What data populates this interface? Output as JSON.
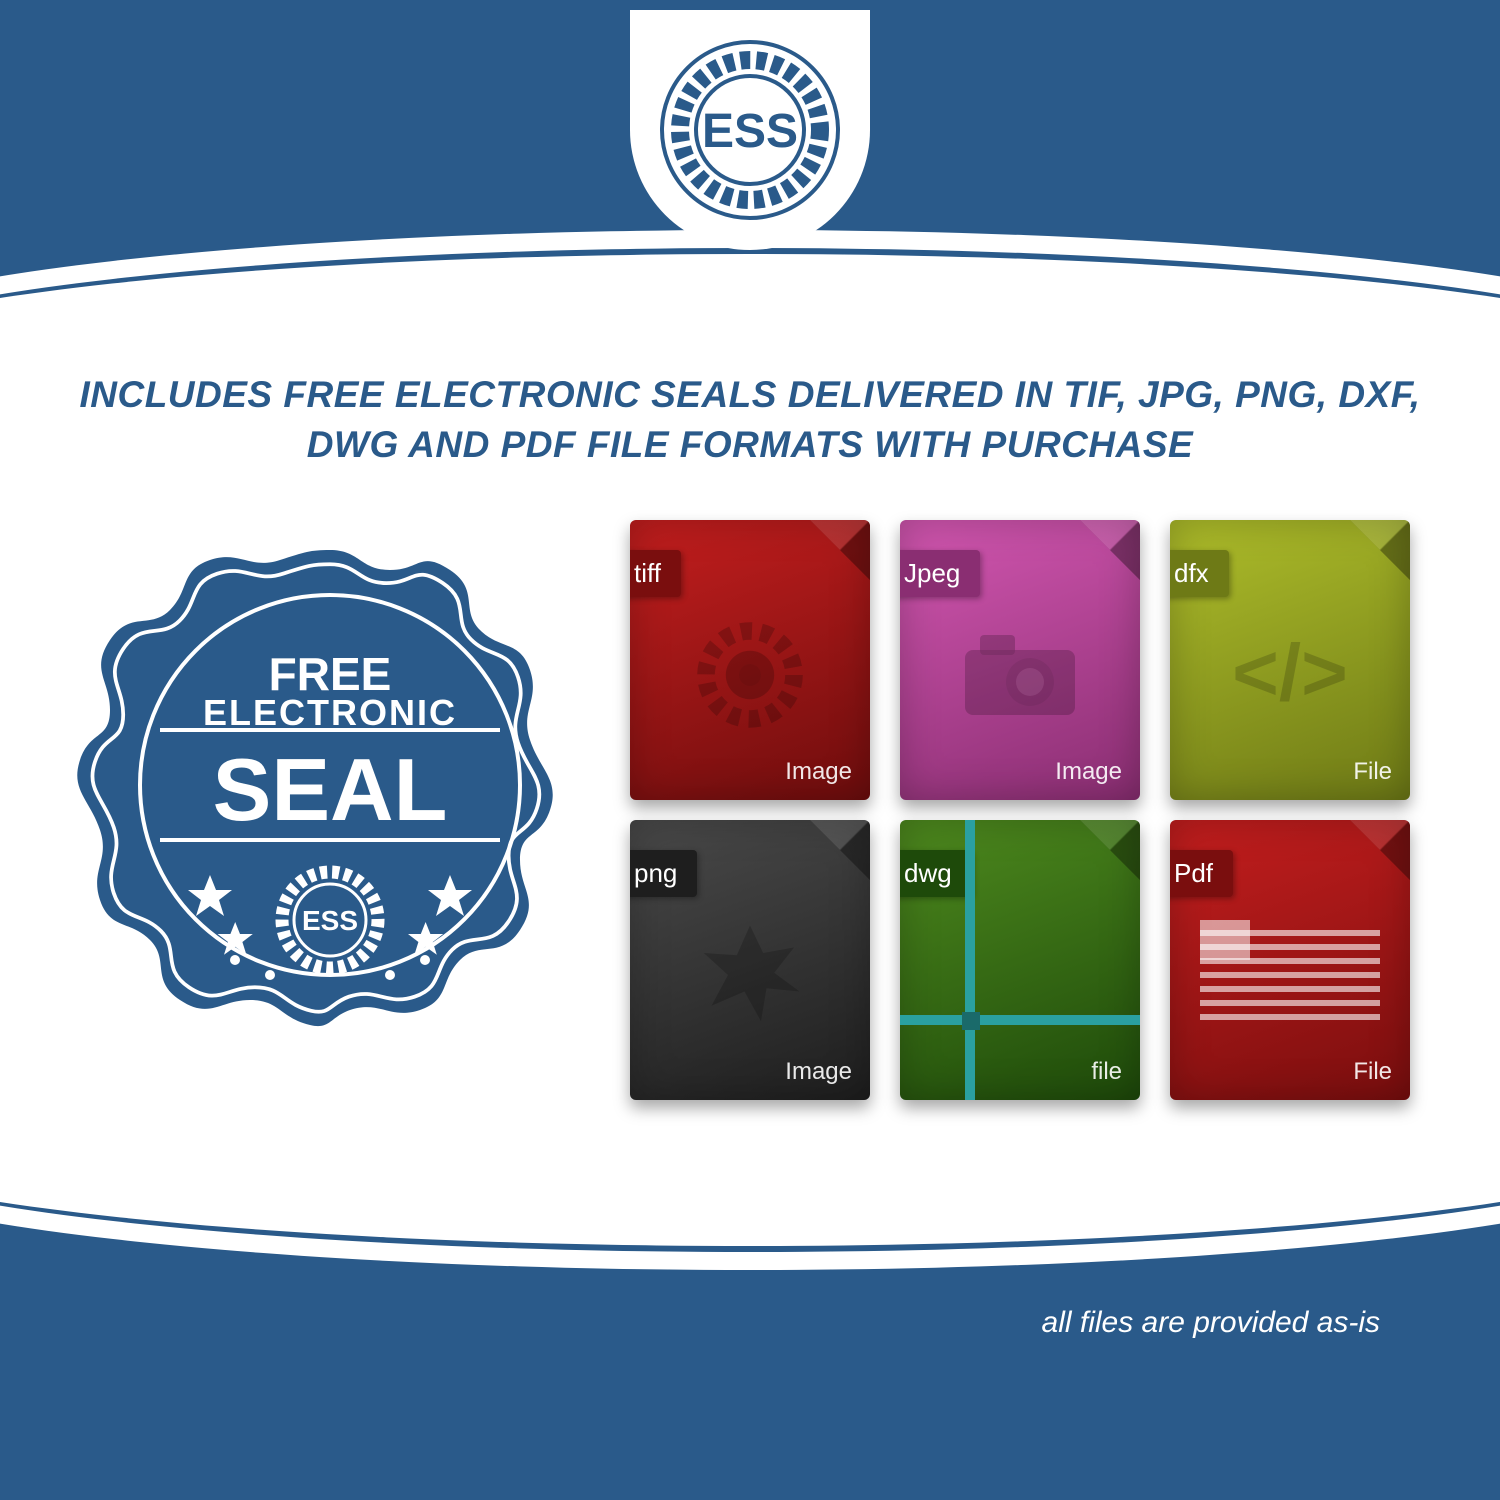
{
  "colors": {
    "brand_blue": "#2a5a8a",
    "white": "#ffffff"
  },
  "logo": {
    "text": "ESS"
  },
  "headline": "INCLUDES FREE ELECTRONIC SEALS DELIVERED IN TIF, JPG, PNG, DXF, DWG AND PDF FILE FORMATS WITH PURCHASE",
  "seal_badge": {
    "line1": "FREE",
    "line2": "ELECTRONIC",
    "line3": "SEAL",
    "inner_text": "ESS",
    "fill": "#2a5a8a",
    "text_color": "#ffffff"
  },
  "file_icons": [
    {
      "tab": "tiff",
      "footer": "Image",
      "bg_from": "#c41e1e",
      "bg_to": "#6e0d0d",
      "tab_bg": "#7a0e0e",
      "glyph": "gear"
    },
    {
      "tab": "Jpeg",
      "footer": "Image",
      "bg_from": "#d256b0",
      "bg_to": "#8a2e72",
      "tab_bg": "#8a2e72",
      "glyph": "camera"
    },
    {
      "tab": "dfx",
      "footer": "File",
      "bg_from": "#aebd2a",
      "bg_to": "#6e7a16",
      "tab_bg": "#6e7a16",
      "glyph": "code"
    },
    {
      "tab": "png",
      "footer": "Image",
      "bg_from": "#4a4a4a",
      "bg_to": "#1e1e1e",
      "tab_bg": "#1e1e1e",
      "glyph": "burst"
    },
    {
      "tab": "dwg",
      "footer": "file",
      "bg_from": "#4e8a1e",
      "bg_to": "#1e4a0a",
      "tab_bg": "#1e4a0a",
      "glyph": "grid"
    },
    {
      "tab": "Pdf",
      "footer": "File",
      "bg_from": "#c41e1e",
      "bg_to": "#7a0e0e",
      "tab_bg": "#7a0e0e",
      "glyph": "doc"
    }
  ],
  "disclaimer": "all files are provided as-is"
}
